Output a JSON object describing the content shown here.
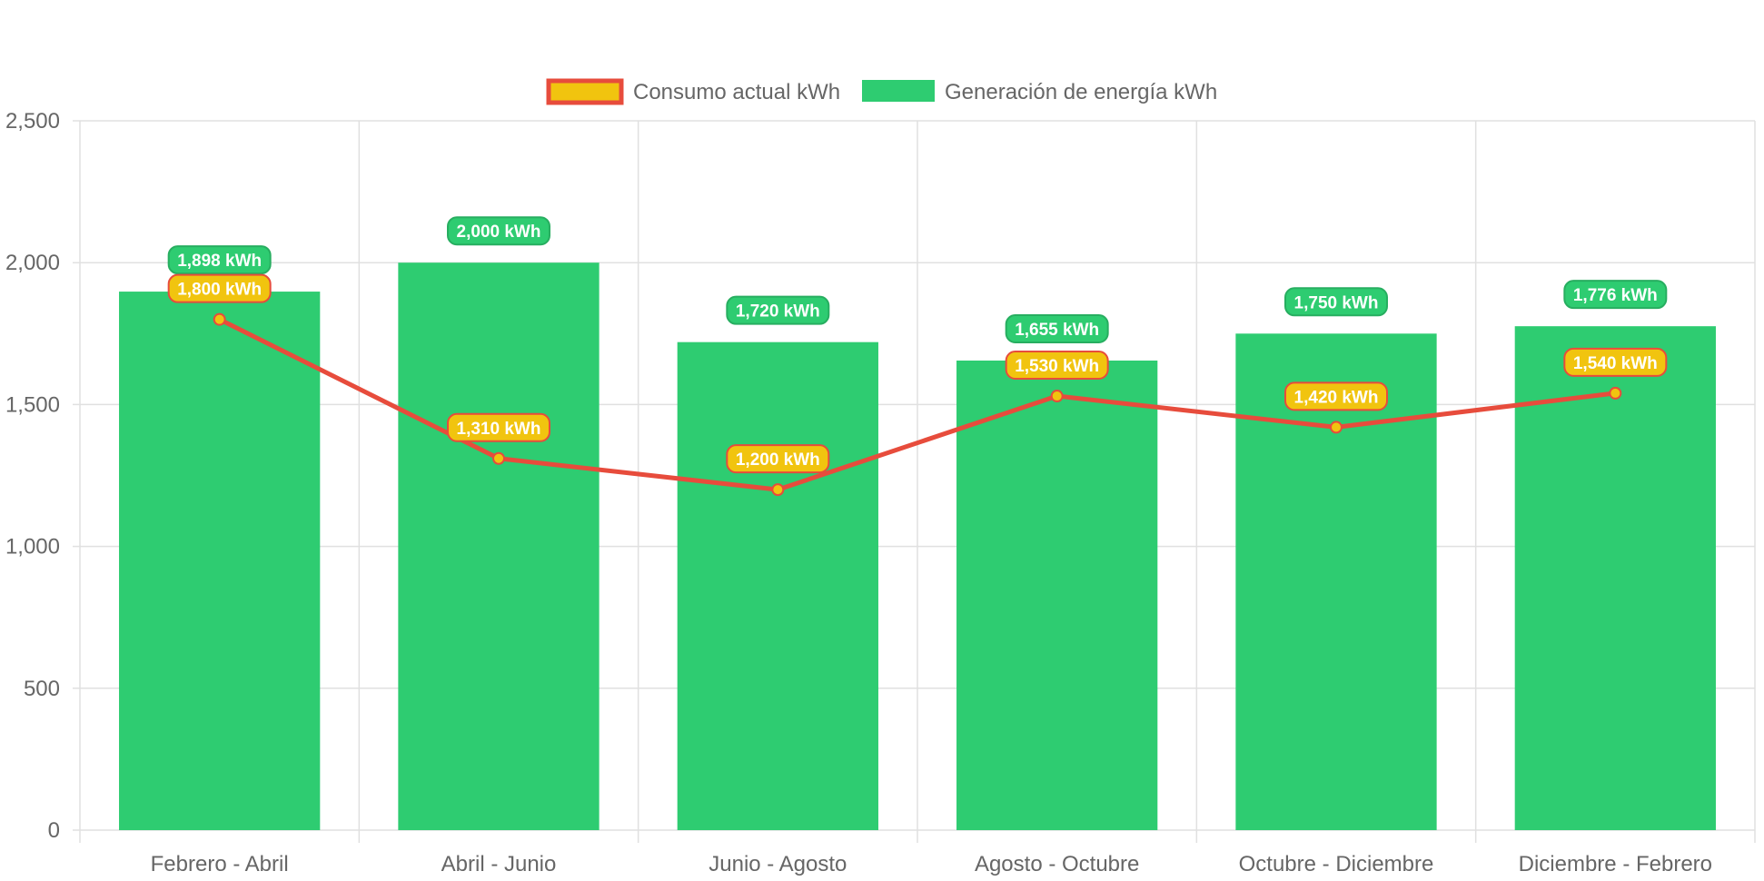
{
  "chart_data": {
    "type": "bar",
    "title": "",
    "xlabel": "",
    "ylabel": "",
    "categories": [
      "Febrero - Abril",
      "Abril - Junio",
      "Junio - Agosto",
      "Agosto - Octubre",
      "Octubre - Diciembre",
      "Diciembre - Febrero"
    ],
    "series": [
      {
        "name": "Consumo actual kWh",
        "type": "line",
        "values": [
          1800,
          1310,
          1200,
          1530,
          1420,
          1540
        ],
        "data_labels": [
          "1,800 kWh",
          "1,310 kWh",
          "1,200 kWh",
          "1,530 kWh",
          "1,420 kWh",
          "1,540 kWh"
        ],
        "color": "#e74c3c",
        "label_color": "#f1c40f"
      },
      {
        "name": "Generación de energía kWh",
        "type": "bar",
        "values": [
          1898,
          2000,
          1720,
          1655,
          1750,
          1776
        ],
        "data_labels": [
          "1,898 kWh",
          "2,000 kWh",
          "1,720 kWh",
          "1,655 kWh",
          "1,750 kWh",
          "1,776 kWh"
        ],
        "color": "#2ecc71",
        "label_border_color": "#27ae60"
      }
    ],
    "ylim": [
      0,
      2500
    ],
    "y_ticks": [
      "0",
      "500",
      "1,000",
      "1,500",
      "2,000",
      "2,500"
    ],
    "y_tick_values": [
      0,
      500,
      1000,
      1500,
      2000,
      2500
    ],
    "grid": true,
    "legend_position": "top",
    "grid_color": "#e0e0e0",
    "axis_text_color": "#666666"
  }
}
